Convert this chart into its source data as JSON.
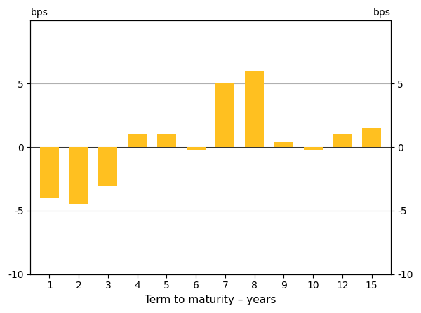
{
  "x_positions": [
    1,
    2,
    3,
    4,
    5,
    6,
    7,
    8,
    9,
    10,
    11,
    12
  ],
  "values": [
    -4.0,
    -4.5,
    -3.0,
    1.0,
    1.0,
    -0.2,
    5.1,
    6.0,
    0.4,
    -0.2,
    1.0,
    1.5
  ],
  "bar_color": "#FFC020",
  "xlabel": "Term to maturity – years",
  "ylabel_left": "bps",
  "ylabel_right": "bps",
  "ylim": [
    -10,
    10
  ],
  "yticks": [
    -10,
    -5,
    0,
    5
  ],
  "x_labels": [
    "1",
    "2",
    "3",
    "4",
    "5",
    "6",
    "7",
    "8",
    "9",
    "10",
    "12",
    "15"
  ],
  "background_color": "#ffffff",
  "grid_color": "#b0b0b0",
  "bar_width": 0.65
}
